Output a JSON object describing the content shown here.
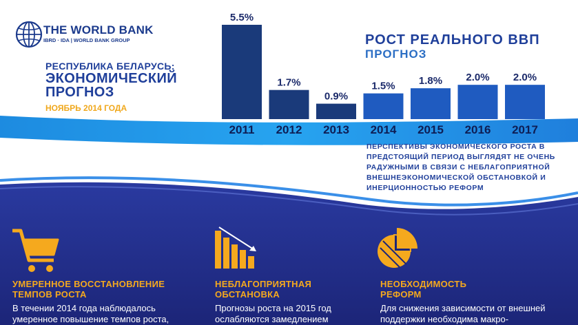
{
  "logo": {
    "name": "THE WORLD BANK",
    "sub": "IBRD · IDA | WORLD BANK GROUP",
    "icon": "globe-icon"
  },
  "header": {
    "country": "РЕСПУБЛИКА БЕЛАРУСЬ:",
    "title_line1": "ЭКОНОМИЧЕСКИЙ",
    "title_line2": "ПРОГНОЗ",
    "date": "НОЯБРЬ 2014 ГОДА"
  },
  "chart_title": {
    "line1": "РОСТ РЕАЛЬНОГО ВВП",
    "line2": "ПРОГНОЗ"
  },
  "chart_data": {
    "type": "bar",
    "title": "РОСТ РЕАЛЬНОГО ВВП ПРОГНОЗ",
    "categories": [
      "2011",
      "2012",
      "2013",
      "2014",
      "2015",
      "2016",
      "2017"
    ],
    "values": [
      5.5,
      1.7,
      0.9,
      1.5,
      1.8,
      2.0,
      2.0
    ],
    "labels": [
      "5.5%",
      "1.7%",
      "0.9%",
      "1.5%",
      "1.8%",
      "2.0%",
      "2.0%"
    ],
    "actual_color": "#1a3a7a",
    "forecast_color": "#1f5bc0",
    "forecast_from_index": 3
  },
  "note": "ПЕРСПЕКТИВЫ ЭКОНОМИЧЕСКОГО РОСТА В ПРЕДСТОЯЩИЙ ПЕРИОД ВЫГЛЯДЯТ НЕ ОЧЕНЬ РАДУЖНЫМИ В СВЯЗИ С НЕБЛАГОПРИЯТНОЙ ВНЕШНЕЭКОНОМИЧЕСКОЙ ОБСТАНОВКОЙ И ИНЕРЦИОННОСТЬЮ РЕФОРМ",
  "sections": [
    {
      "icon": "shopping-cart-icon",
      "title_line1": "УМЕРЕННОЕ ВОССТАНОВЛЕНИЕ",
      "title_line2": "ТЕМПОВ РОСТА",
      "body_line1": "В течении 2014 года наблюдалось",
      "body_line2": "умеренное повышение темпов роста,"
    },
    {
      "icon": "declining-chart-icon",
      "title_line1": "НЕБЛАГОПРИЯТНАЯ",
      "title_line2": "ОБСТАНОВКА",
      "body_line1": "Прогнозы роста на 2015 год",
      "body_line2": "ослабляются замедлением"
    },
    {
      "icon": "pie-chart-icon",
      "title_line1": "НЕОБХОДИМОСТЬ",
      "title_line2": "РЕФОРМ",
      "body_line1": "Для снижения зависимости от внешней",
      "body_line2": "поддержки необходима макро-"
    }
  ],
  "colors": {
    "navy": "#1a2a6c",
    "orange": "#f5a91e",
    "blue": "#1f5bc0"
  }
}
